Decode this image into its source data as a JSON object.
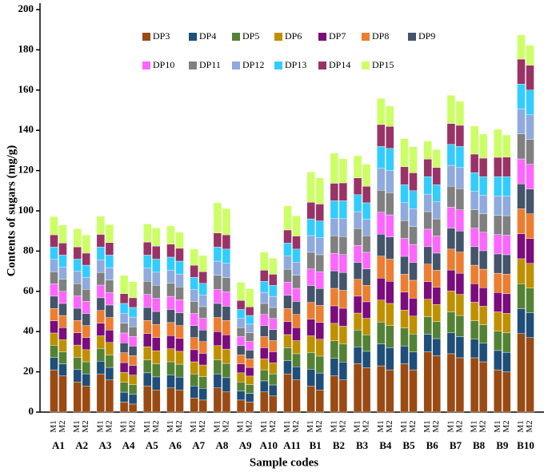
{
  "chart_data": {
    "type": "stacked_bar",
    "y_label": "Contents of sugars (mg/g)",
    "x_label": "Sample codes",
    "groups": [
      "A1",
      "A2",
      "A3",
      "A4",
      "A5",
      "A6",
      "A7",
      "A8",
      "A9",
      "A10",
      "A11",
      "B1",
      "B2",
      "B3",
      "B4",
      "B5",
      "B6",
      "B7",
      "B8",
      "B9",
      "B10"
    ],
    "categories": [
      "M1",
      "M2",
      "M1",
      "M2",
      "M1",
      "M2",
      "M1",
      "M2",
      "M1",
      "M2",
      "M1",
      "M2",
      "M1",
      "M2",
      "M1",
      "M2",
      "M1",
      "M2",
      "M1",
      "M2",
      "M1",
      "M2",
      "M1",
      "M2",
      "M1",
      "M2",
      "M1",
      "M2",
      "M1",
      "M2",
      "M1",
      "M2",
      "M1",
      "M2",
      "M1",
      "M2",
      "M1",
      "M2",
      "M1",
      "M2",
      "M1",
      "M2"
    ],
    "ylim": [
      0,
      200
    ],
    "yticks": [
      0,
      20,
      40,
      60,
      80,
      100,
      120,
      140,
      160,
      180,
      200
    ],
    "series": [
      {
        "name": "DP3",
        "color": "#9a4a13",
        "values": [
          21,
          18,
          15,
          13,
          19,
          16,
          5,
          4,
          13,
          11,
          12,
          11,
          7,
          6,
          12,
          10,
          6,
          5,
          10,
          8,
          19,
          16,
          13,
          11,
          18,
          16,
          24,
          22,
          23,
          21,
          24,
          21,
          30,
          28,
          29,
          27,
          27,
          25,
          21,
          20,
          39,
          37
        ]
      },
      {
        "name": "DP4",
        "color": "#1f4e79",
        "values": [
          6.1,
          6.0,
          6.1,
          6.0,
          6.3,
          6.2,
          4.9,
          4.8,
          6.5,
          6.5,
          6.5,
          6.4,
          6.0,
          5.8,
          7.0,
          7.1,
          4.5,
          4.3,
          5.5,
          5.5,
          6.5,
          6.5,
          8.3,
          8.4,
          8.7,
          8.9,
          8.4,
          8.2,
          10.9,
          11.0,
          8.9,
          8.9,
          8.7,
          8.5,
          10.4,
          10.5,
          9.2,
          9.2,
          9.6,
          9.7,
          12.4,
          12.3
        ]
      },
      {
        "name": "DP5",
        "color": "#548235",
        "values": [
          6.1,
          6.0,
          6.1,
          6.0,
          6.3,
          6.2,
          4.9,
          4.8,
          6.5,
          6.5,
          6.5,
          6.4,
          6.0,
          5.8,
          7.0,
          7.1,
          4.5,
          4.3,
          5.5,
          5.5,
          6.5,
          6.5,
          8.3,
          8.4,
          8.7,
          8.9,
          8.4,
          8.2,
          10.9,
          11.0,
          8.9,
          8.9,
          8.7,
          8.5,
          10.4,
          10.5,
          9.2,
          9.2,
          9.6,
          9.7,
          12.4,
          12.3
        ]
      },
      {
        "name": "DP6",
        "color": "#bf9000",
        "values": [
          6.1,
          6.0,
          6.1,
          6.0,
          6.3,
          6.2,
          4.9,
          4.8,
          6.5,
          6.5,
          6.5,
          6.4,
          6.0,
          5.8,
          7.0,
          7.1,
          4.5,
          4.3,
          5.5,
          5.5,
          6.5,
          6.5,
          8.3,
          8.4,
          8.7,
          8.9,
          8.4,
          8.2,
          10.9,
          11.0,
          8.9,
          8.9,
          8.7,
          8.5,
          10.4,
          10.5,
          9.2,
          9.2,
          9.6,
          9.7,
          12.4,
          12.3
        ]
      },
      {
        "name": "DP7",
        "color": "#7b0c7b",
        "values": [
          6.1,
          6.0,
          6.1,
          6.0,
          6.3,
          6.2,
          4.9,
          4.8,
          6.5,
          6.5,
          6.5,
          6.4,
          6.0,
          5.8,
          7.0,
          7.1,
          4.5,
          4.3,
          5.5,
          5.5,
          6.5,
          6.5,
          8.3,
          8.4,
          8.7,
          8.9,
          8.4,
          8.2,
          10.9,
          11.0,
          8.9,
          8.9,
          8.7,
          8.5,
          10.4,
          10.5,
          9.2,
          9.2,
          9.6,
          9.7,
          12.4,
          12.3
        ]
      },
      {
        "name": "DP8",
        "color": "#ed7d31",
        "values": [
          6.1,
          6.0,
          6.1,
          6.0,
          6.3,
          6.2,
          4.9,
          4.8,
          6.5,
          6.5,
          6.5,
          6.4,
          6.0,
          5.8,
          7.0,
          7.1,
          4.5,
          4.3,
          5.5,
          5.5,
          6.5,
          6.5,
          8.3,
          8.4,
          8.7,
          8.9,
          8.4,
          8.2,
          10.9,
          11.0,
          8.9,
          8.9,
          8.7,
          8.5,
          10.4,
          10.5,
          9.2,
          9.2,
          9.6,
          9.7,
          12.4,
          12.3
        ]
      },
      {
        "name": "DP9",
        "color": "#44546a",
        "values": [
          6.1,
          6.0,
          6.1,
          6.0,
          6.3,
          6.2,
          4.9,
          4.8,
          6.5,
          6.5,
          6.5,
          6.4,
          6.0,
          5.8,
          7.0,
          7.1,
          4.5,
          4.3,
          5.5,
          5.5,
          6.5,
          6.5,
          8.3,
          8.4,
          8.7,
          8.9,
          8.4,
          8.2,
          10.9,
          11.0,
          8.9,
          8.9,
          8.7,
          8.5,
          10.4,
          10.5,
          9.2,
          9.2,
          9.6,
          9.7,
          12.4,
          12.3
        ]
      },
      {
        "name": "DP10",
        "color": "#ff66ff",
        "values": [
          6.1,
          6.0,
          6.1,
          6.0,
          6.3,
          6.2,
          4.9,
          4.8,
          6.5,
          6.5,
          6.5,
          6.4,
          6.0,
          5.8,
          7.0,
          7.1,
          4.5,
          4.3,
          5.5,
          5.5,
          6.5,
          6.5,
          8.3,
          8.4,
          8.7,
          8.9,
          8.4,
          8.2,
          10.9,
          11.0,
          8.9,
          8.9,
          8.7,
          8.5,
          10.4,
          10.5,
          9.2,
          9.2,
          9.6,
          9.7,
          12.4,
          12.3
        ]
      },
      {
        "name": "DP11",
        "color": "#808080",
        "values": [
          6.1,
          6.0,
          6.1,
          6.0,
          6.3,
          6.2,
          4.9,
          4.8,
          6.5,
          6.5,
          6.5,
          6.4,
          6.0,
          5.8,
          7.0,
          7.1,
          4.5,
          4.3,
          5.5,
          5.5,
          6.5,
          6.5,
          8.3,
          8.4,
          8.7,
          8.9,
          8.4,
          8.2,
          10.9,
          11.0,
          8.9,
          8.9,
          8.7,
          8.5,
          10.4,
          10.5,
          9.2,
          9.2,
          9.6,
          9.7,
          12.4,
          12.3
        ]
      },
      {
        "name": "DP12",
        "color": "#8faadc",
        "values": [
          6.1,
          6.0,
          6.1,
          6.0,
          6.3,
          6.2,
          4.9,
          4.8,
          6.5,
          6.5,
          6.5,
          6.4,
          6.0,
          5.8,
          7.0,
          7.1,
          4.5,
          4.3,
          5.5,
          5.5,
          6.5,
          6.5,
          8.3,
          8.4,
          8.7,
          8.9,
          8.4,
          8.2,
          10.9,
          11.0,
          8.9,
          8.9,
          8.7,
          8.5,
          10.4,
          10.5,
          9.2,
          9.2,
          9.6,
          9.7,
          12.4,
          12.3
        ]
      },
      {
        "name": "DP13",
        "color": "#33ccff",
        "values": [
          6.1,
          6.0,
          6.1,
          6.0,
          6.3,
          6.2,
          4.9,
          4.8,
          6.5,
          6.5,
          6.5,
          6.4,
          6.0,
          5.8,
          7.0,
          7.1,
          4.5,
          4.3,
          5.5,
          5.5,
          6.5,
          6.5,
          8.3,
          8.4,
          8.7,
          8.9,
          8.4,
          8.2,
          10.9,
          11.0,
          8.9,
          8.9,
          8.7,
          8.5,
          10.4,
          10.5,
          9.2,
          9.2,
          9.6,
          9.7,
          12.4,
          12.3
        ]
      },
      {
        "name": "DP14",
        "color": "#993366",
        "values": [
          6.1,
          6.0,
          6.1,
          6.0,
          6.3,
          6.2,
          4.9,
          4.8,
          6.5,
          6.5,
          6.5,
          6.4,
          6.0,
          5.8,
          7.0,
          7.1,
          4.5,
          4.3,
          5.5,
          5.5,
          6.5,
          6.5,
          8.3,
          8.4,
          8.7,
          8.9,
          8.4,
          8.2,
          10.9,
          11.0,
          8.9,
          8.9,
          8.7,
          8.5,
          10.4,
          10.5,
          9.2,
          9.2,
          9.6,
          9.7,
          12.4,
          12.3
        ]
      },
      {
        "name": "DP15",
        "color": "#ccff66",
        "values": [
          9,
          9,
          9,
          9,
          9,
          9,
          9,
          8,
          9,
          9,
          9,
          8,
          8,
          8,
          15,
          13,
          9,
          9,
          9,
          8,
          12,
          10,
          15,
          13,
          15,
          12,
          11,
          11,
          13,
          10,
          14,
          13,
          9,
          9,
          14,
          12,
          14,
          12,
          14,
          11,
          12,
          10
        ]
      }
    ]
  }
}
